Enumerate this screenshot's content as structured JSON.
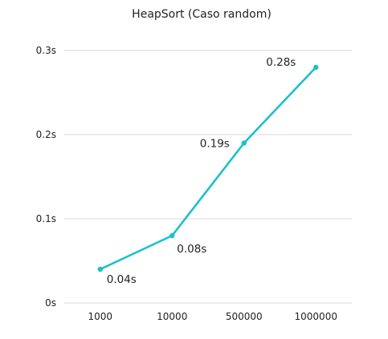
{
  "chart_data": {
    "type": "line",
    "title": "HeapSort (Caso random)",
    "xlabel": "",
    "ylabel": "",
    "categories": [
      "1000",
      "10000",
      "500000",
      "1000000"
    ],
    "series": [
      {
        "values": [
          0.04,
          0.08,
          0.19,
          0.28
        ],
        "data_labels": [
          "0.04s",
          "0.08s",
          "0.19s",
          "0.28s"
        ],
        "color": "#1bc1c9"
      }
    ],
    "ylim": [
      0,
      0.3
    ],
    "yticks": [
      0,
      0.1,
      0.2,
      0.3
    ],
    "ytick_labels": [
      "0s",
      "0.1s",
      "0.2s",
      "0.3s"
    ],
    "grid": "horizontal",
    "legend": "none"
  },
  "colors": {
    "series": "#1bc1c9",
    "grid": "#d9d9d9",
    "text": "#222222"
  }
}
